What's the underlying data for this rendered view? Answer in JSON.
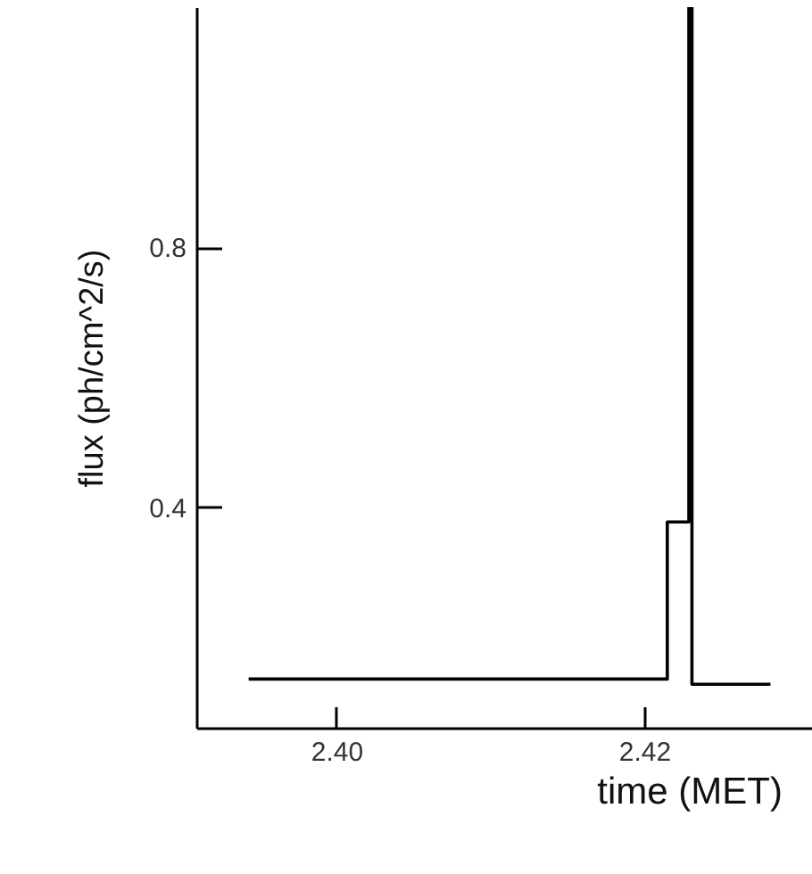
{
  "chart_data": {
    "type": "step",
    "xlabel": "time (MET)",
    "ylabel": "flux (ph/cm^2/s)",
    "x": [
      2.3943,
      2.4215,
      2.4229,
      2.4231,
      2.4282
    ],
    "series": [
      {
        "color": "#000000",
        "values": [
          0.135,
          0.377,
          1.17,
          0.127,
          0.127
        ]
      }
    ],
    "xlim": [
      2.3909,
      2.4309
    ],
    "xticks": [
      {
        "value": 2.4,
        "label": "2.40"
      },
      {
        "value": 2.42,
        "label": "2.42"
      }
    ],
    "ylim": [
      0.06,
      1.17
    ],
    "yticks": [
      0.4,
      0.8
    ],
    "grid": false
  }
}
